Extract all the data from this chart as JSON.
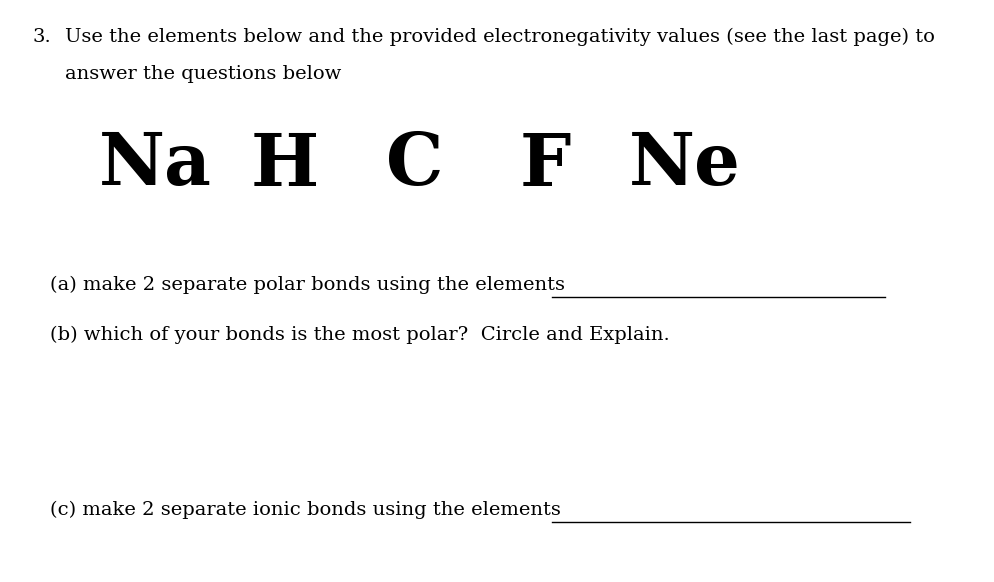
{
  "background_color": "#ffffff",
  "fig_width": 9.94,
  "fig_height": 5.82,
  "number_label": "3.",
  "intro_line1": "Use the elements below and the provided electronegativity values (see the last page) to",
  "intro_line2": "answer the questions below",
  "elements": [
    "Na",
    "H",
    "C",
    "F",
    "Ne"
  ],
  "elements_fontsize": 52,
  "part_a_text": "(a) make 2 separate polar bonds using the elements",
  "part_b_text": "(b) which of your bonds is the most polar?  Circle and Explain.",
  "part_c_text": "(c) make 2 separate ionic bonds using the elements",
  "text_fontsize": 14,
  "intro_fontsize": 14,
  "number_fontsize": 14,
  "text_color": "#000000",
  "line_color": "#000000",
  "font_family": "serif"
}
